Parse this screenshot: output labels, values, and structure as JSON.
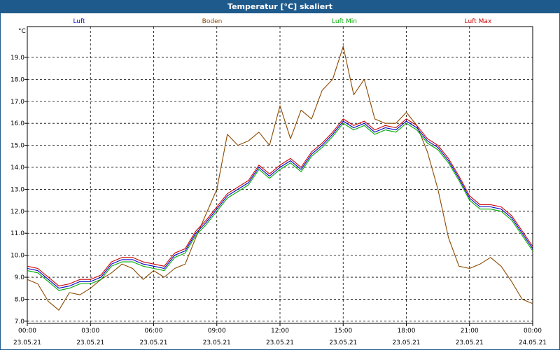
{
  "window": {
    "title": "Temperatur [°C] skaliert"
  },
  "chart_data": {
    "type": "line",
    "title": "Temperatur [°C] skaliert",
    "ylabel": "°C",
    "ylim": [
      6.9,
      20.4
    ],
    "yticks": [
      7.0,
      8.0,
      9.0,
      10.0,
      11.0,
      12.0,
      13.0,
      14.0,
      15.0,
      16.0,
      17.0,
      18.0,
      19.0
    ],
    "xlim_hours": [
      0,
      24
    ],
    "xticks": [
      {
        "hour": 0,
        "time": "00:00",
        "date": "23.05.21"
      },
      {
        "hour": 3,
        "time": "03:00",
        "date": "23.05.21"
      },
      {
        "hour": 6,
        "time": "06:00",
        "date": "23.05.21"
      },
      {
        "hour": 9,
        "time": "09:00",
        "date": "23.05.21"
      },
      {
        "hour": 12,
        "time": "12:00",
        "date": "23.05.21"
      },
      {
        "hour": 15,
        "time": "15:00",
        "date": "23.05.21"
      },
      {
        "hour": 18,
        "time": "18:00",
        "date": "23.05.21"
      },
      {
        "hour": 21,
        "time": "21:00",
        "date": "23.05.21"
      },
      {
        "hour": 24,
        "time": "00:00",
        "date": "24.05.21"
      }
    ],
    "grid": true,
    "series": [
      {
        "name": "Luft",
        "color": "#0000cc",
        "x": [
          0,
          0.5,
          1,
          1.5,
          2,
          2.5,
          3,
          3.5,
          4,
          4.5,
          5,
          5.5,
          6,
          6.5,
          7,
          7.5,
          8,
          8.5,
          9,
          9.5,
          10,
          10.5,
          11,
          11.5,
          12,
          12.5,
          13,
          13.5,
          14,
          14.5,
          15,
          15.5,
          16,
          16.5,
          17,
          17.5,
          18,
          18.5,
          19,
          19.5,
          20,
          20.5,
          21,
          21.5,
          22,
          22.5,
          23,
          23.5,
          24
        ],
        "y": [
          9.4,
          9.3,
          8.9,
          8.5,
          8.6,
          8.8,
          8.8,
          9.0,
          9.6,
          9.8,
          9.8,
          9.6,
          9.5,
          9.4,
          10.0,
          10.2,
          11.0,
          11.5,
          12.1,
          12.7,
          13.0,
          13.3,
          14.0,
          13.6,
          14.0,
          14.3,
          13.9,
          14.6,
          15.0,
          15.5,
          16.1,
          15.8,
          16.0,
          15.6,
          15.8,
          15.7,
          16.1,
          15.8,
          15.2,
          14.9,
          14.3,
          13.5,
          12.6,
          12.2,
          12.2,
          12.1,
          11.7,
          11.0,
          10.3
        ]
      },
      {
        "name": "Boden",
        "color": "#8b4a00",
        "x": [
          0,
          0.5,
          1,
          1.5,
          2,
          2.5,
          3,
          3.5,
          4,
          4.5,
          5,
          5.5,
          6,
          6.5,
          7,
          7.5,
          8,
          8.5,
          9,
          9.5,
          10,
          10.5,
          11,
          11.5,
          12,
          12.5,
          13,
          13.5,
          14,
          14.5,
          15,
          15.5,
          16,
          16.5,
          17,
          17.5,
          18,
          18.5,
          19,
          19.5,
          20,
          20.5,
          21,
          21.5,
          22,
          22.5,
          23,
          23.5,
          24
        ],
        "y": [
          8.9,
          8.7,
          7.9,
          7.5,
          8.3,
          8.2,
          8.5,
          8.9,
          9.2,
          9.6,
          9.4,
          8.9,
          9.3,
          9.0,
          9.4,
          9.6,
          10.8,
          11.9,
          13.0,
          15.5,
          15.0,
          15.2,
          15.6,
          15.0,
          16.8,
          15.3,
          16.6,
          16.2,
          17.5,
          18.0,
          19.5,
          17.3,
          18.0,
          16.2,
          16.0,
          16.0,
          16.5,
          15.9,
          14.7,
          13.0,
          10.8,
          9.5,
          9.4,
          9.6,
          9.9,
          9.5,
          8.8,
          8.0,
          7.8
        ]
      },
      {
        "name": "Luft Min",
        "color": "#00aa00",
        "x": [
          0,
          0.5,
          1,
          1.5,
          2,
          2.5,
          3,
          3.5,
          4,
          4.5,
          5,
          5.5,
          6,
          6.5,
          7,
          7.5,
          8,
          8.5,
          9,
          9.5,
          10,
          10.5,
          11,
          11.5,
          12,
          12.5,
          13,
          13.5,
          14,
          14.5,
          15,
          15.5,
          16,
          16.5,
          17,
          17.5,
          18,
          18.5,
          19,
          19.5,
          20,
          20.5,
          21,
          21.5,
          22,
          22.5,
          23,
          23.5,
          24
        ],
        "y": [
          9.3,
          9.2,
          8.8,
          8.4,
          8.5,
          8.7,
          8.7,
          8.9,
          9.5,
          9.7,
          9.7,
          9.5,
          9.4,
          9.3,
          9.9,
          10.1,
          10.9,
          11.4,
          12.0,
          12.6,
          12.9,
          13.2,
          13.9,
          13.5,
          13.9,
          14.2,
          13.8,
          14.5,
          14.9,
          15.4,
          16.0,
          15.7,
          15.9,
          15.5,
          15.7,
          15.6,
          16.0,
          15.7,
          15.1,
          14.8,
          14.2,
          13.4,
          12.5,
          12.1,
          12.1,
          12.0,
          11.6,
          10.9,
          10.2
        ]
      },
      {
        "name": "Luft Max",
        "color": "#cc0000",
        "x": [
          0,
          0.5,
          1,
          1.5,
          2,
          2.5,
          3,
          3.5,
          4,
          4.5,
          5,
          5.5,
          6,
          6.5,
          7,
          7.5,
          8,
          8.5,
          9,
          9.5,
          10,
          10.5,
          11,
          11.5,
          12,
          12.5,
          13,
          13.5,
          14,
          14.5,
          15,
          15.5,
          16,
          16.5,
          17,
          17.5,
          18,
          18.5,
          19,
          19.5,
          20,
          20.5,
          21,
          21.5,
          22,
          22.5,
          23,
          23.5,
          24
        ],
        "y": [
          9.5,
          9.4,
          9.0,
          8.6,
          8.7,
          8.9,
          8.9,
          9.1,
          9.7,
          9.9,
          9.9,
          9.7,
          9.6,
          9.5,
          10.1,
          10.3,
          11.1,
          11.6,
          12.2,
          12.8,
          13.1,
          13.4,
          14.1,
          13.7,
          14.1,
          14.4,
          14.0,
          14.7,
          15.1,
          15.6,
          16.2,
          15.9,
          16.1,
          15.7,
          15.9,
          15.8,
          16.2,
          15.9,
          15.3,
          15.0,
          14.4,
          13.6,
          12.7,
          12.3,
          12.3,
          12.2,
          11.8,
          11.1,
          10.4
        ]
      }
    ]
  }
}
